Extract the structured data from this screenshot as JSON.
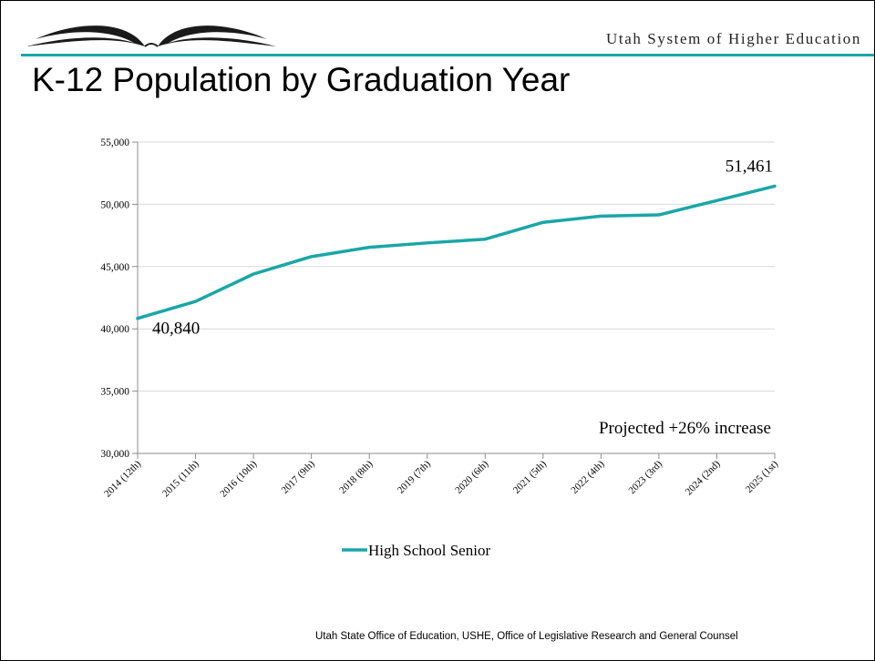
{
  "header": {
    "org_name": "Utah System of Higher Education",
    "title": "K-12 Population by Graduation Year"
  },
  "colors": {
    "accent": "#1aa6a6",
    "grid": "#d9d9d9",
    "text": "#000000"
  },
  "chart_data": {
    "type": "line",
    "title": "",
    "xlabel": "",
    "ylabel": "",
    "categories": [
      "2014 (12th)",
      "2015 (11th)",
      "2016 (10th)",
      "2017 (9th)",
      "2018 (8th)",
      "2019 (7th)",
      "2020 (6th)",
      "2021 (5th)",
      "2022 (4th)",
      "2023 (3rd)",
      "2024 (2nd)",
      "2025 (1st)"
    ],
    "series": [
      {
        "name": "High School Senior",
        "color": "#1aa6a6",
        "values": [
          40840,
          42200,
          44400,
          45800,
          46550,
          46900,
          47200,
          48550,
          49050,
          49150,
          50300,
          51461
        ]
      }
    ],
    "ylim": [
      30000,
      55000
    ],
    "yticks": [
      30000,
      35000,
      40000,
      45000,
      50000,
      55000
    ],
    "ytick_labels": [
      "30,000",
      "35,000",
      "40,000",
      "45,000",
      "50,000",
      "55,000"
    ],
    "grid": true,
    "legend_position": "bottom",
    "annotations": [
      {
        "text": "40,840",
        "point_index": 0
      },
      {
        "text": "51,461",
        "point_index": 11
      },
      {
        "text": "Projected +26% increase"
      }
    ]
  },
  "footer": {
    "source": "Utah State Office of Education, USHE, Office of Legislative Research and General Counsel"
  }
}
